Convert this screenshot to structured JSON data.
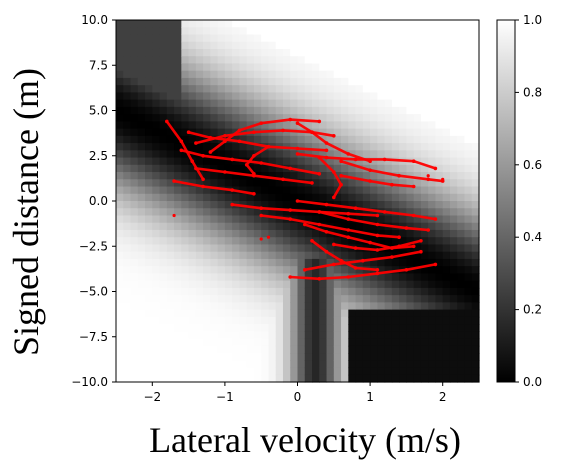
{
  "chart_data": {
    "type": "heatmap",
    "title": "",
    "xlabel": "Lateral velocity (m/s)",
    "ylabel": "Signed distance (m)",
    "xlim": [
      -2.5,
      2.5
    ],
    "ylim": [
      -10,
      10
    ],
    "x_ticks": [
      "−2",
      "−1",
      "0",
      "1",
      "2"
    ],
    "x_tick_values": [
      -2,
      -1,
      0,
      1,
      2
    ],
    "y_ticks": [
      "10.0",
      "7.5",
      "5.0",
      "2.5",
      "0.0",
      "−2.5",
      "−5.0",
      "−7.5",
      "−10.0"
    ],
    "y_tick_values": [
      10,
      7.5,
      5,
      2.5,
      0,
      -2.5,
      -5,
      -7.5,
      -10
    ],
    "colorbar": {
      "min": 0,
      "max": 1,
      "colormap": "gray",
      "ticks": [
        "0.0",
        "0.2",
        "0.4",
        "0.6",
        "0.8",
        "1.0"
      ],
      "tick_values": [
        0,
        0.2,
        0.4,
        0.6,
        0.8,
        1.0
      ]
    },
    "heatmap_grid": {
      "nx": 50,
      "ny": 50
    },
    "overlay_series": {
      "color": "#ff0000",
      "marker": "dot",
      "trajectories": [
        [
          [
            -1.8,
            4.4
          ],
          [
            -1.6,
            3.3
          ],
          [
            -1.45,
            2.2
          ],
          [
            -1.3,
            1.2
          ]
        ],
        [
          [
            -1.5,
            3.8
          ],
          [
            -1.2,
            3.5
          ],
          [
            -0.8,
            3.3
          ],
          [
            -0.4,
            3.0
          ],
          [
            0.0,
            2.9
          ],
          [
            0.4,
            2.8
          ]
        ],
        [
          [
            -1.4,
            3.2
          ],
          [
            -1.0,
            3.6
          ],
          [
            -0.6,
            3.8
          ],
          [
            -0.2,
            3.9
          ],
          [
            0.2,
            3.8
          ],
          [
            0.5,
            3.6
          ]
        ],
        [
          [
            -1.6,
            2.8
          ],
          [
            -1.3,
            2.5
          ],
          [
            -0.9,
            2.3
          ],
          [
            -0.5,
            2.1
          ],
          [
            -0.1,
            1.8
          ],
          [
            0.3,
            1.5
          ]
        ],
        [
          [
            -1.2,
            2.7
          ],
          [
            -1.0,
            3.3
          ],
          [
            -0.8,
            3.9
          ],
          [
            -0.5,
            4.3
          ],
          [
            -0.1,
            4.5
          ],
          [
            0.3,
            4.4
          ]
        ],
        [
          [
            -1.4,
            1.8
          ],
          [
            -1.0,
            1.6
          ],
          [
            -0.6,
            1.4
          ],
          [
            -0.2,
            1.2
          ],
          [
            0.2,
            1.0
          ]
        ],
        [
          [
            -1.7,
            1.1
          ],
          [
            -1.3,
            0.8
          ],
          [
            -0.9,
            0.6
          ],
          [
            -0.6,
            0.4
          ]
        ],
        [
          [
            0.0,
            4.3
          ],
          [
            0.2,
            3.8
          ],
          [
            0.4,
            3.2
          ],
          [
            0.7,
            2.6
          ],
          [
            1.0,
            2.2
          ]
        ],
        [
          [
            0.0,
            2.6
          ],
          [
            0.4,
            2.4
          ],
          [
            0.8,
            2.3
          ],
          [
            1.2,
            2.3
          ],
          [
            1.6,
            2.2
          ],
          [
            1.9,
            1.8
          ]
        ],
        [
          [
            0.6,
            2.2
          ],
          [
            1.0,
            1.7
          ],
          [
            1.4,
            1.4
          ],
          [
            1.8,
            1.2
          ],
          [
            2.0,
            1.1
          ]
        ],
        [
          [
            0.3,
            2.4
          ],
          [
            0.5,
            1.6
          ],
          [
            0.6,
            0.9
          ],
          [
            0.5,
            0.2
          ]
        ],
        [
          [
            -0.9,
            -0.2
          ],
          [
            -0.5,
            -0.4
          ],
          [
            -0.1,
            -0.5
          ],
          [
            0.3,
            -0.6
          ],
          [
            0.7,
            -0.7
          ],
          [
            1.1,
            -0.8
          ]
        ],
        [
          [
            0.0,
            0.0
          ],
          [
            0.4,
            -0.2
          ],
          [
            0.8,
            -0.4
          ],
          [
            1.2,
            -0.6
          ],
          [
            1.6,
            -0.8
          ],
          [
            1.9,
            -1.0
          ]
        ],
        [
          [
            -0.5,
            -0.8
          ],
          [
            -0.1,
            -1.0
          ],
          [
            0.3,
            -1.3
          ],
          [
            0.7,
            -1.6
          ],
          [
            1.1,
            -1.9
          ],
          [
            1.4,
            -2.0
          ]
        ],
        [
          [
            0.1,
            -1.3
          ],
          [
            0.4,
            -1.7
          ],
          [
            0.7,
            -2.0
          ],
          [
            1.0,
            -2.3
          ],
          [
            1.3,
            -2.6
          ],
          [
            1.6,
            -2.5
          ]
        ],
        [
          [
            0.2,
            -2.2
          ],
          [
            0.4,
            -2.8
          ],
          [
            0.6,
            -3.3
          ],
          [
            0.8,
            -3.7
          ],
          [
            1.1,
            -3.8
          ]
        ],
        [
          [
            0.5,
            -2.4
          ],
          [
            0.8,
            -2.6
          ],
          [
            1.1,
            -2.7
          ],
          [
            1.4,
            -2.5
          ],
          [
            1.7,
            -2.2
          ]
        ],
        [
          [
            0.3,
            -0.6
          ],
          [
            0.7,
            -1.0
          ],
          [
            1.1,
            -1.3
          ],
          [
            1.5,
            -1.5
          ],
          [
            1.8,
            -1.6
          ]
        ],
        [
          [
            -0.1,
            -4.2
          ],
          [
            0.3,
            -4.3
          ],
          [
            0.7,
            -4.2
          ],
          [
            1.1,
            -4.0
          ],
          [
            1.5,
            -3.8
          ],
          [
            1.9,
            -3.5
          ]
        ],
        [
          [
            0.1,
            -3.8
          ],
          [
            0.5,
            -3.5
          ],
          [
            0.9,
            -3.3
          ],
          [
            1.3,
            -3.1
          ],
          [
            1.7,
            -2.8
          ]
        ],
        [
          [
            -0.4,
            3.0
          ],
          [
            -0.6,
            2.5
          ],
          [
            -0.7,
            2.0
          ],
          [
            -0.6,
            1.5
          ]
        ],
        [
          [
            0.6,
            1.4
          ],
          [
            1.0,
            1.1
          ],
          [
            1.3,
            0.9
          ],
          [
            1.6,
            0.8
          ]
        ]
      ],
      "isolated_points": [
        [
          -1.7,
          -0.8
        ],
        [
          -0.5,
          -2.1
        ],
        [
          -0.4,
          -2.0
        ],
        [
          2.0,
          1.2
        ],
        [
          1.8,
          1.4
        ]
      ]
    }
  }
}
